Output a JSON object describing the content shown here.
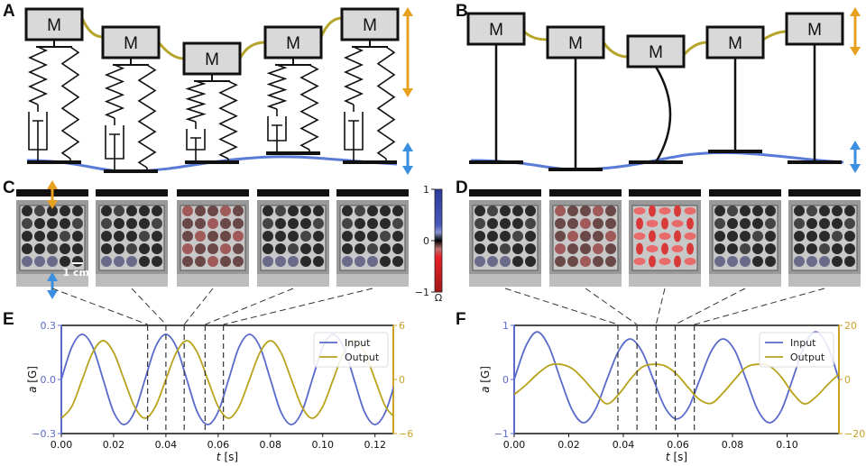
{
  "panels": {
    "A": "A",
    "B": "B",
    "C": "C",
    "D": "D",
    "E": "E",
    "F": "F"
  },
  "mass_label": "M",
  "scale_bar": "1 cm",
  "colorbar": {
    "ticks": [
      "1",
      "0",
      "−1"
    ],
    "unit": "Ω",
    "colors": [
      "#2a3a9a",
      "#7a86c8",
      "#000000",
      "#c04040",
      "#e8202a",
      "#b01818"
    ]
  },
  "colors": {
    "input": "#5a6acb",
    "output": "#b8a21a",
    "left_axis": "#5a6acb",
    "right_axis": "#c9a227",
    "orange_arrow": "#e8a020",
    "blue_arrow": "#3a8fe0",
    "connector": "#b5a52a",
    "base_curve": "#5a7ad8"
  },
  "chart_data": [
    {
      "panel": "E",
      "type": "line",
      "xlabel_var": "t",
      "xlabel_unit": "[s]",
      "ylabel_var": "a",
      "ylabel_unit": "[G]",
      "xlim": [
        0,
        0.127
      ],
      "ylim_left": [
        -0.3,
        0.3
      ],
      "ylim_right": [
        -6,
        6
      ],
      "xticks": [
        "0.00",
        "0.02",
        "0.04",
        "0.06",
        "0.08",
        "0.10",
        "0.12"
      ],
      "xtick_values": [
        0,
        0.02,
        0.04,
        0.06,
        0.08,
        0.1,
        0.12
      ],
      "yticks_left": [
        "0.3",
        "0.0",
        "−0.3"
      ],
      "ytick_left_values": [
        0.3,
        0,
        -0.3
      ],
      "yticks_right": [
        "6",
        "0",
        "−6"
      ],
      "ytick_right_values": [
        6,
        0,
        -6
      ],
      "legend": "top-right",
      "markers_t": [
        0.033,
        0.04,
        0.047,
        0.055,
        0.062
      ],
      "series": [
        {
          "name": "Input",
          "axis": "left",
          "x": [
            0,
            0.004,
            0.008,
            0.012,
            0.016,
            0.02,
            0.024,
            0.028,
            0.032,
            0.036,
            0.04,
            0.044,
            0.048,
            0.052,
            0.056,
            0.06,
            0.064,
            0.068,
            0.072,
            0.076,
            0.08,
            0.084,
            0.088,
            0.092,
            0.096,
            0.1,
            0.104,
            0.108,
            0.112,
            0.116,
            0.12,
            0.124,
            0.128
          ],
          "y": [
            0,
            0.18,
            0.25,
            0.18,
            0,
            -0.18,
            -0.25,
            -0.18,
            0,
            0.18,
            0.25,
            0.18,
            0,
            -0.18,
            -0.25,
            -0.18,
            0,
            0.18,
            0.25,
            0.18,
            0,
            -0.18,
            -0.25,
            -0.18,
            0,
            0.18,
            0.25,
            0.18,
            0,
            -0.18,
            -0.25,
            -0.18,
            0
          ]
        },
        {
          "name": "Output",
          "axis": "right",
          "x": [
            0,
            0.004,
            0.008,
            0.012,
            0.016,
            0.02,
            0.024,
            0.028,
            0.032,
            0.036,
            0.04,
            0.044,
            0.048,
            0.052,
            0.056,
            0.06,
            0.064,
            0.068,
            0.072,
            0.076,
            0.08,
            0.084,
            0.088,
            0.092,
            0.096,
            0.1,
            0.104,
            0.108,
            0.112,
            0.116,
            0.12,
            0.124,
            0.128
          ],
          "y": [
            -4.3,
            -3.0,
            0,
            3.0,
            4.3,
            3.0,
            0,
            -3.0,
            -4.3,
            -3.0,
            0,
            3.0,
            4.3,
            3.0,
            0,
            -3.0,
            -4.3,
            -3.0,
            0,
            3.0,
            4.3,
            3.0,
            0,
            -3.0,
            -4.3,
            -3.0,
            0,
            3.0,
            4.3,
            3.0,
            0,
            -3.0,
            -4.3
          ]
        }
      ]
    },
    {
      "panel": "F",
      "type": "line",
      "xlabel_var": "t",
      "xlabel_unit": "[s]",
      "ylabel_var": "a",
      "ylabel_unit": "[G]",
      "xlim": [
        0,
        0.119
      ],
      "ylim_left": [
        -1,
        1
      ],
      "ylim_right": [
        -20,
        20
      ],
      "xticks": [
        "0.00",
        "0.02",
        "0.04",
        "0.06",
        "0.08",
        "0.10"
      ],
      "xtick_values": [
        0,
        0.02,
        0.04,
        0.06,
        0.08,
        0.1
      ],
      "yticks_left": [
        "1",
        "0",
        "−1"
      ],
      "ytick_left_values": [
        1,
        0,
        -1
      ],
      "yticks_right": [
        "20",
        "0",
        "−20"
      ],
      "ytick_right_values": [
        20,
        0,
        -20
      ],
      "legend": "top-right",
      "markers_t": [
        0.038,
        0.045,
        0.052,
        0.059,
        0.066
      ],
      "series": [
        {
          "name": "Input",
          "axis": "left",
          "x": [
            0,
            0.0043,
            0.0085,
            0.0128,
            0.017,
            0.0213,
            0.0255,
            0.0298,
            0.034,
            0.0383,
            0.0425,
            0.0468,
            0.051,
            0.0553,
            0.0595,
            0.0638,
            0.068,
            0.0723,
            0.0765,
            0.0808,
            0.085,
            0.0893,
            0.0935,
            0.0978,
            0.102,
            0.1063,
            0.1105,
            0.1148,
            0.119
          ],
          "y": [
            0,
            0.62,
            0.88,
            0.6,
            0,
            -0.57,
            -0.8,
            -0.55,
            0,
            0.53,
            0.75,
            0.52,
            0,
            -0.52,
            -0.73,
            -0.53,
            0,
            0.53,
            0.75,
            0.54,
            0,
            -0.57,
            -0.8,
            -0.58,
            0,
            0.62,
            0.88,
            0.62,
            0
          ]
        },
        {
          "name": "Output",
          "axis": "right",
          "x": [
            0,
            0.0043,
            0.0085,
            0.0128,
            0.017,
            0.0213,
            0.0255,
            0.0298,
            0.034,
            0.0383,
            0.0425,
            0.0468,
            0.051,
            0.0553,
            0.0595,
            0.0638,
            0.068,
            0.0723,
            0.0765,
            0.0808,
            0.085,
            0.0893,
            0.0935,
            0.0978,
            0.102,
            0.1063,
            0.1105,
            0.1148,
            0.119
          ],
          "y": [
            -5.6,
            -2,
            2,
            5.2,
            5.6,
            4,
            0,
            -5,
            -9,
            -5.5,
            0,
            4.5,
            5.6,
            5,
            2,
            -3,
            -7.5,
            -8.8,
            -5,
            0,
            4.5,
            5.6,
            5,
            1,
            -5,
            -9,
            -6.5,
            -2,
            2
          ]
        }
      ]
    }
  ]
}
